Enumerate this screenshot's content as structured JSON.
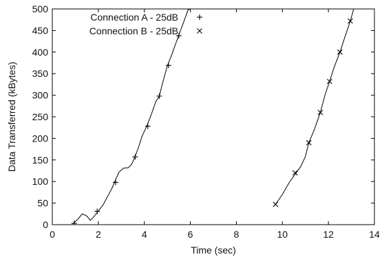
{
  "chart_data": {
    "type": "line",
    "title": "",
    "xlabel": "Time (sec)",
    "ylabel": "Data Transferred (kBytes)",
    "xlim": [
      0,
      14
    ],
    "ylim": [
      0,
      500
    ],
    "x_ticks": [
      0,
      2,
      4,
      6,
      8,
      10,
      12,
      14
    ],
    "y_ticks": [
      0,
      50,
      100,
      150,
      200,
      250,
      300,
      350,
      400,
      450,
      500
    ],
    "grid": false,
    "legend_position": "top",
    "series": [
      {
        "name": "Connection A - 25dB",
        "marker": "+",
        "line_points": [
          [
            0.9,
            2
          ],
          [
            0.95,
            5
          ],
          [
            1.1,
            12
          ],
          [
            1.3,
            25
          ],
          [
            1.5,
            20
          ],
          [
            1.65,
            10
          ],
          [
            1.8,
            18
          ],
          [
            2.0,
            32
          ],
          [
            2.2,
            45
          ],
          [
            2.4,
            65
          ],
          [
            2.6,
            85
          ],
          [
            2.7,
            98
          ],
          [
            2.9,
            122
          ],
          [
            3.1,
            131
          ],
          [
            3.3,
            132
          ],
          [
            3.45,
            140
          ],
          [
            3.6,
            158
          ],
          [
            3.75,
            180
          ],
          [
            3.9,
            205
          ],
          [
            4.1,
            228
          ],
          [
            4.3,
            255
          ],
          [
            4.5,
            285
          ],
          [
            4.65,
            298
          ],
          [
            4.8,
            330
          ],
          [
            5.0,
            368
          ],
          [
            5.2,
            395
          ],
          [
            5.5,
            440
          ],
          [
            5.7,
            468
          ],
          [
            5.9,
            498
          ],
          [
            6.0,
            500
          ]
        ],
        "marker_points": [
          [
            0.95,
            3
          ],
          [
            1.95,
            31
          ],
          [
            2.75,
            98
          ],
          [
            3.6,
            157
          ],
          [
            4.15,
            228
          ],
          [
            4.65,
            298
          ],
          [
            5.05,
            369
          ],
          [
            5.5,
            438
          ]
        ]
      },
      {
        "name": "Connection B - 25dB",
        "marker": "x",
        "line_points": [
          [
            9.7,
            47
          ],
          [
            10.0,
            70
          ],
          [
            10.3,
            98
          ],
          [
            10.6,
            120
          ],
          [
            10.8,
            135
          ],
          [
            11.0,
            158
          ],
          [
            11.15,
            190
          ],
          [
            11.4,
            222
          ],
          [
            11.65,
            260
          ],
          [
            11.85,
            300
          ],
          [
            12.05,
            332
          ],
          [
            12.25,
            365
          ],
          [
            12.5,
            400
          ],
          [
            12.7,
            432
          ],
          [
            12.95,
            472
          ],
          [
            13.1,
            500
          ]
        ],
        "marker_points": [
          [
            9.7,
            47
          ],
          [
            10.55,
            120
          ],
          [
            11.15,
            190
          ],
          [
            11.65,
            260
          ],
          [
            12.05,
            332
          ],
          [
            12.5,
            400
          ],
          [
            12.95,
            472
          ]
        ]
      }
    ]
  }
}
